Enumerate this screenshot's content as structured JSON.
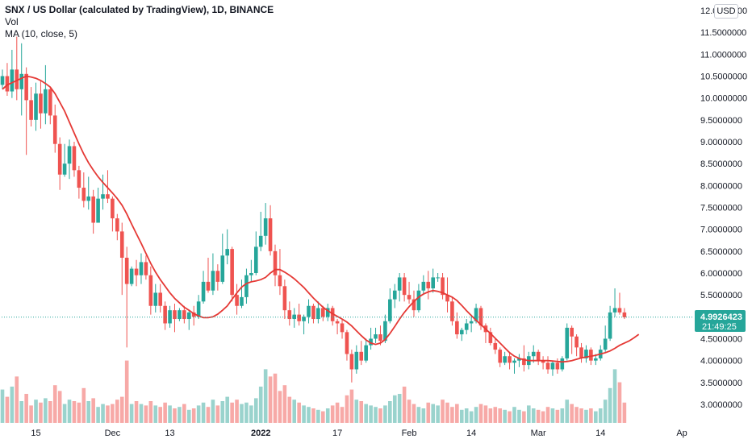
{
  "legend": {
    "title": "SNX / US Dollar (calculated by TradingView), 1D, BINANCE",
    "vol_label": "Vol",
    "ma_label": "MA (10, close, 5)"
  },
  "currency": "USD",
  "price_tag": {
    "price": "4.9926423",
    "countdown": "21:49:25"
  },
  "colors": {
    "up": "#26a69a",
    "down": "#ef5350",
    "vol_up": "#9ad3cd",
    "vol_down": "#f7a9a7",
    "ma": "#e53935",
    "tag": "#26a69a"
  },
  "chart_data": {
    "type": "candlestick",
    "title": "SNX / US Dollar (calculated by TradingView), 1D, BINANCE",
    "ylim": [
      2.55,
      12.1
    ],
    "y_ticks": [
      "3.0000000",
      "3.5000000",
      "4.0000000",
      "4.5000000",
      "5.0000000",
      "5.5000000",
      "6.0000000",
      "6.5000000",
      "7.0000000",
      "7.5000000",
      "8.0000000",
      "8.5000000",
      "9.0000000",
      "9.5000000",
      "10.0000000",
      "10.5000000",
      "11.0000000",
      "11.5000000",
      "12.0000000"
    ],
    "x_ticks": [
      {
        "label": "15",
        "index": 7
      },
      {
        "label": "Dec",
        "index": 23
      },
      {
        "label": "13",
        "index": 35
      },
      {
        "label": "2022",
        "index": 54
      },
      {
        "label": "17",
        "index": 70
      },
      {
        "label": "Feb",
        "index": 85
      },
      {
        "label": "14",
        "index": 98
      },
      {
        "label": "Mar",
        "index": 112
      },
      {
        "label": "14",
        "index": 125
      },
      {
        "label": "Ap",
        "index": 142
      }
    ],
    "last_price": 4.9926423,
    "candles": [
      [
        10.3,
        10.5,
        10.65,
        10.2,
        2.3
      ],
      [
        10.5,
        10.15,
        10.8,
        10.05,
        1.8
      ],
      [
        10.15,
        10.65,
        11.1,
        10.0,
        2.5
      ],
      [
        10.65,
        10.2,
        11.4,
        9.95,
        3.2
      ],
      [
        10.2,
        10.55,
        11.25,
        9.6,
        1.5
      ],
      [
        10.55,
        9.95,
        10.7,
        8.7,
        2.0
      ],
      [
        9.95,
        9.5,
        10.25,
        9.35,
        1.2
      ],
      [
        9.5,
        10.1,
        10.35,
        9.25,
        1.6
      ],
      [
        10.1,
        9.65,
        10.4,
        9.3,
        1.4
      ],
      [
        9.65,
        10.2,
        10.75,
        9.4,
        1.7
      ],
      [
        10.2,
        9.6,
        10.25,
        9.4,
        1.5
      ],
      [
        9.6,
        8.95,
        9.85,
        8.75,
        2.6
      ],
      [
        8.95,
        8.25,
        9.1,
        7.9,
        2.2
      ],
      [
        8.25,
        8.5,
        8.95,
        8.2,
        1.3
      ],
      [
        8.5,
        8.9,
        9.05,
        8.15,
        1.6
      ],
      [
        8.9,
        8.35,
        9.0,
        8.2,
        1.5
      ],
      [
        8.35,
        7.95,
        8.45,
        7.7,
        1.4
      ],
      [
        7.95,
        7.65,
        8.3,
        7.5,
        2.4
      ],
      [
        7.65,
        7.75,
        8.2,
        7.45,
        1.5
      ],
      [
        7.75,
        7.15,
        7.9,
        6.9,
        1.7
      ],
      [
        7.15,
        7.7,
        7.95,
        7.15,
        1.1
      ],
      [
        7.7,
        7.8,
        8.25,
        7.45,
        1.3
      ],
      [
        7.8,
        7.7,
        8.35,
        7.6,
        1.2
      ],
      [
        7.7,
        7.25,
        7.75,
        6.95,
        1.3
      ],
      [
        7.25,
        6.95,
        7.35,
        6.75,
        1.6
      ],
      [
        6.95,
        6.35,
        7.15,
        5.5,
        1.8
      ],
      [
        6.35,
        5.75,
        6.6,
        4.3,
        4.3
      ],
      [
        5.75,
        6.1,
        6.15,
        5.7,
        1.3
      ],
      [
        6.1,
        5.95,
        6.3,
        5.7,
        1.5
      ],
      [
        5.95,
        6.25,
        6.45,
        5.75,
        1.3
      ],
      [
        6.25,
        5.95,
        6.4,
        5.85,
        1.2
      ],
      [
        5.95,
        5.25,
        6.15,
        5.05,
        1.5
      ],
      [
        5.25,
        5.55,
        5.75,
        5.1,
        1.2
      ],
      [
        5.55,
        5.25,
        5.75,
        5.1,
        1.1
      ],
      [
        5.25,
        4.85,
        5.35,
        4.7,
        1.4
      ],
      [
        4.85,
        5.15,
        5.25,
        4.75,
        1.2
      ],
      [
        5.15,
        4.95,
        5.3,
        4.65,
        1.0
      ],
      [
        4.95,
        5.15,
        5.2,
        4.9,
        1.1
      ],
      [
        5.15,
        4.95,
        5.25,
        4.85,
        1.3
      ],
      [
        4.95,
        5.1,
        5.15,
        4.7,
        0.9
      ],
      [
        5.1,
        5.0,
        5.25,
        4.8,
        1.0
      ],
      [
        5.0,
        5.35,
        5.5,
        4.95,
        1.2
      ],
      [
        5.35,
        5.8,
        6.05,
        5.3,
        1.4
      ],
      [
        5.8,
        5.6,
        6.35,
        5.55,
        1.1
      ],
      [
        5.6,
        6.05,
        6.45,
        5.5,
        1.6
      ],
      [
        6.05,
        5.8,
        6.2,
        5.6,
        1.2
      ],
      [
        5.8,
        6.4,
        6.9,
        5.75,
        1.5
      ],
      [
        6.4,
        6.55,
        7.0,
        6.2,
        1.8
      ],
      [
        6.55,
        5.5,
        6.6,
        5.35,
        1.4
      ],
      [
        5.5,
        5.25,
        5.75,
        5.05,
        1.6
      ],
      [
        5.25,
        5.45,
        5.85,
        5.2,
        1.3
      ],
      [
        5.45,
        5.95,
        6.1,
        5.3,
        1.4
      ],
      [
        5.95,
        6.0,
        6.3,
        5.8,
        1.2
      ],
      [
        6.0,
        6.6,
        6.95,
        5.95,
        1.7
      ],
      [
        6.6,
        6.85,
        7.4,
        6.5,
        2.5
      ],
      [
        6.85,
        7.25,
        7.6,
        6.65,
        3.7
      ],
      [
        7.25,
        6.5,
        7.55,
        6.4,
        3.2
      ],
      [
        6.5,
        5.95,
        6.65,
        5.7,
        3.4
      ],
      [
        5.95,
        5.7,
        6.55,
        5.5,
        2.2
      ],
      [
        5.7,
        5.15,
        5.85,
        4.95,
        2.6
      ],
      [
        5.15,
        4.95,
        5.35,
        4.8,
        1.8
      ],
      [
        4.95,
        5.05,
        5.2,
        4.75,
        1.6
      ],
      [
        5.05,
        4.9,
        5.3,
        4.8,
        1.4
      ],
      [
        4.9,
        5.0,
        5.05,
        4.6,
        1.2
      ],
      [
        5.0,
        5.25,
        5.4,
        4.85,
        1.1
      ],
      [
        5.25,
        4.95,
        5.3,
        4.85,
        1.0
      ],
      [
        4.95,
        5.2,
        5.35,
        4.85,
        0.9
      ],
      [
        5.2,
        5.0,
        5.25,
        4.9,
        0.8
      ],
      [
        5.0,
        5.2,
        5.3,
        4.9,
        1.0
      ],
      [
        5.2,
        4.9,
        5.25,
        4.8,
        1.2
      ],
      [
        4.9,
        4.85,
        4.95,
        4.6,
        1.4
      ],
      [
        4.85,
        4.65,
        4.95,
        4.5,
        1.1
      ],
      [
        4.65,
        4.15,
        4.7,
        4.0,
        1.9
      ],
      [
        4.15,
        3.8,
        4.25,
        3.5,
        2.3
      ],
      [
        3.8,
        4.2,
        4.35,
        3.7,
        1.6
      ],
      [
        4.2,
        4.0,
        4.45,
        3.9,
        1.5
      ],
      [
        4.0,
        4.35,
        4.5,
        3.95,
        1.3
      ],
      [
        4.35,
        4.5,
        4.75,
        4.25,
        1.2
      ],
      [
        4.5,
        4.6,
        4.75,
        4.4,
        1.1
      ],
      [
        4.6,
        4.45,
        4.8,
        4.35,
        1.0
      ],
      [
        4.45,
        4.9,
        5.05,
        4.4,
        1.2
      ],
      [
        4.9,
        5.4,
        5.65,
        4.85,
        1.5
      ],
      [
        5.4,
        5.6,
        5.75,
        5.2,
        1.9
      ],
      [
        5.6,
        5.9,
        6.0,
        5.35,
        2.0
      ],
      [
        5.9,
        5.5,
        6.0,
        5.35,
        2.5
      ],
      [
        5.5,
        5.4,
        5.8,
        5.3,
        1.6
      ],
      [
        5.4,
        5.15,
        5.6,
        5.0,
        1.3
      ],
      [
        5.15,
        5.6,
        5.75,
        5.1,
        1.1
      ],
      [
        5.6,
        5.8,
        5.95,
        5.5,
        1.0
      ],
      [
        5.8,
        5.65,
        6.05,
        5.4,
        1.4
      ],
      [
        5.65,
        5.9,
        6.1,
        5.55,
        1.3
      ],
      [
        5.9,
        5.9,
        6.0,
        5.8,
        1.2
      ],
      [
        5.9,
        5.5,
        6.0,
        5.4,
        1.6
      ],
      [
        5.5,
        5.35,
        5.9,
        5.1,
        1.4
      ],
      [
        5.35,
        4.9,
        5.45,
        4.8,
        1.1
      ],
      [
        4.9,
        4.6,
        5.1,
        4.5,
        1.3
      ],
      [
        4.6,
        4.7,
        4.75,
        4.45,
        0.9
      ],
      [
        4.7,
        4.85,
        4.95,
        4.6,
        1.0
      ],
      [
        4.85,
        4.9,
        5.05,
        4.65,
        0.8
      ],
      [
        4.9,
        5.2,
        5.3,
        4.85,
        1.1
      ],
      [
        5.2,
        4.8,
        5.25,
        4.7,
        1.3
      ],
      [
        4.8,
        4.65,
        4.85,
        4.4,
        1.2
      ],
      [
        4.65,
        4.4,
        4.75,
        4.35,
        1.0
      ],
      [
        4.4,
        4.25,
        4.5,
        4.15,
        1.1
      ],
      [
        4.25,
        3.95,
        4.3,
        3.85,
        1.0
      ],
      [
        3.95,
        4.1,
        4.2,
        3.9,
        0.9
      ],
      [
        4.1,
        3.95,
        4.2,
        3.8,
        0.8
      ],
      [
        3.95,
        4.0,
        4.05,
        3.7,
        1.1
      ],
      [
        4.0,
        4.05,
        4.15,
        3.85,
        0.9
      ],
      [
        4.05,
        3.9,
        4.35,
        3.75,
        0.8
      ],
      [
        3.9,
        4.1,
        4.2,
        3.8,
        1.2
      ],
      [
        4.1,
        4.2,
        4.35,
        3.95,
        1.0
      ],
      [
        4.2,
        4.0,
        4.25,
        3.9,
        0.9
      ],
      [
        4.0,
        3.95,
        4.1,
        3.8,
        0.8
      ],
      [
        3.95,
        3.8,
        4.1,
        3.7,
        1.1
      ],
      [
        3.8,
        3.95,
        4.0,
        3.65,
        1.0
      ],
      [
        3.95,
        3.8,
        4.05,
        3.7,
        0.9
      ],
      [
        3.8,
        4.05,
        4.1,
        3.75,
        1.0
      ],
      [
        4.05,
        4.75,
        4.85,
        4.0,
        1.6
      ],
      [
        4.75,
        4.55,
        4.8,
        4.15,
        1.3
      ],
      [
        4.55,
        4.3,
        4.6,
        4.1,
        1.1
      ],
      [
        4.3,
        4.05,
        4.4,
        3.95,
        1.0
      ],
      [
        4.05,
        4.25,
        4.35,
        3.95,
        0.9
      ],
      [
        4.25,
        4.0,
        4.3,
        3.9,
        1.0
      ],
      [
        4.0,
        4.05,
        4.15,
        3.9,
        0.8
      ],
      [
        4.05,
        4.25,
        4.35,
        4.0,
        1.0
      ],
      [
        4.25,
        4.5,
        4.8,
        4.2,
        1.6
      ],
      [
        4.5,
        5.1,
        5.25,
        4.45,
        2.4
      ],
      [
        5.1,
        5.2,
        5.65,
        5.0,
        3.7
      ],
      [
        5.2,
        5.1,
        5.55,
        5.05,
        2.8
      ],
      [
        5.1,
        4.99,
        5.2,
        4.95,
        1.4
      ]
    ],
    "ma_values": [
      10.2,
      10.3,
      10.35,
      10.4,
      10.45,
      10.5,
      10.48,
      10.45,
      10.4,
      10.33,
      10.25,
      10.1,
      9.9,
      9.7,
      9.45,
      9.2,
      8.95,
      8.72,
      8.52,
      8.35,
      8.2,
      8.07,
      7.95,
      7.83,
      7.7,
      7.55,
      7.35,
      7.12,
      6.9,
      6.68,
      6.45,
      6.22,
      6.02,
      5.85,
      5.7,
      5.55,
      5.42,
      5.32,
      5.22,
      5.15,
      5.07,
      5.02,
      4.98,
      4.98,
      5.0,
      5.06,
      5.15,
      5.25,
      5.4,
      5.55,
      5.68,
      5.76,
      5.8,
      5.82,
      5.85,
      5.9,
      6.0,
      6.08,
      6.08,
      6.02,
      5.95,
      5.87,
      5.77,
      5.67,
      5.55,
      5.43,
      5.32,
      5.22,
      5.14,
      5.07,
      5.01,
      4.95,
      4.88,
      4.79,
      4.68,
      4.57,
      4.47,
      4.4,
      4.37,
      4.4,
      4.48,
      4.62,
      4.78,
      4.95,
      5.1,
      5.23,
      5.35,
      5.45,
      5.52,
      5.57,
      5.6,
      5.58,
      5.55,
      5.5,
      5.45,
      5.37,
      5.26,
      5.14,
      5.03,
      4.92,
      4.82,
      4.72,
      4.62,
      4.51,
      4.4,
      4.29,
      4.18,
      4.1,
      4.05,
      4.02,
      4.0,
      4.0,
      4.0,
      4.0,
      4.0,
      3.99,
      3.98,
      3.97,
      3.98,
      4.0,
      4.03,
      4.06,
      4.08,
      4.1,
      4.12,
      4.15,
      4.18,
      4.22,
      4.28,
      4.35,
      4.4,
      4.45,
      4.52,
      4.6
    ]
  }
}
